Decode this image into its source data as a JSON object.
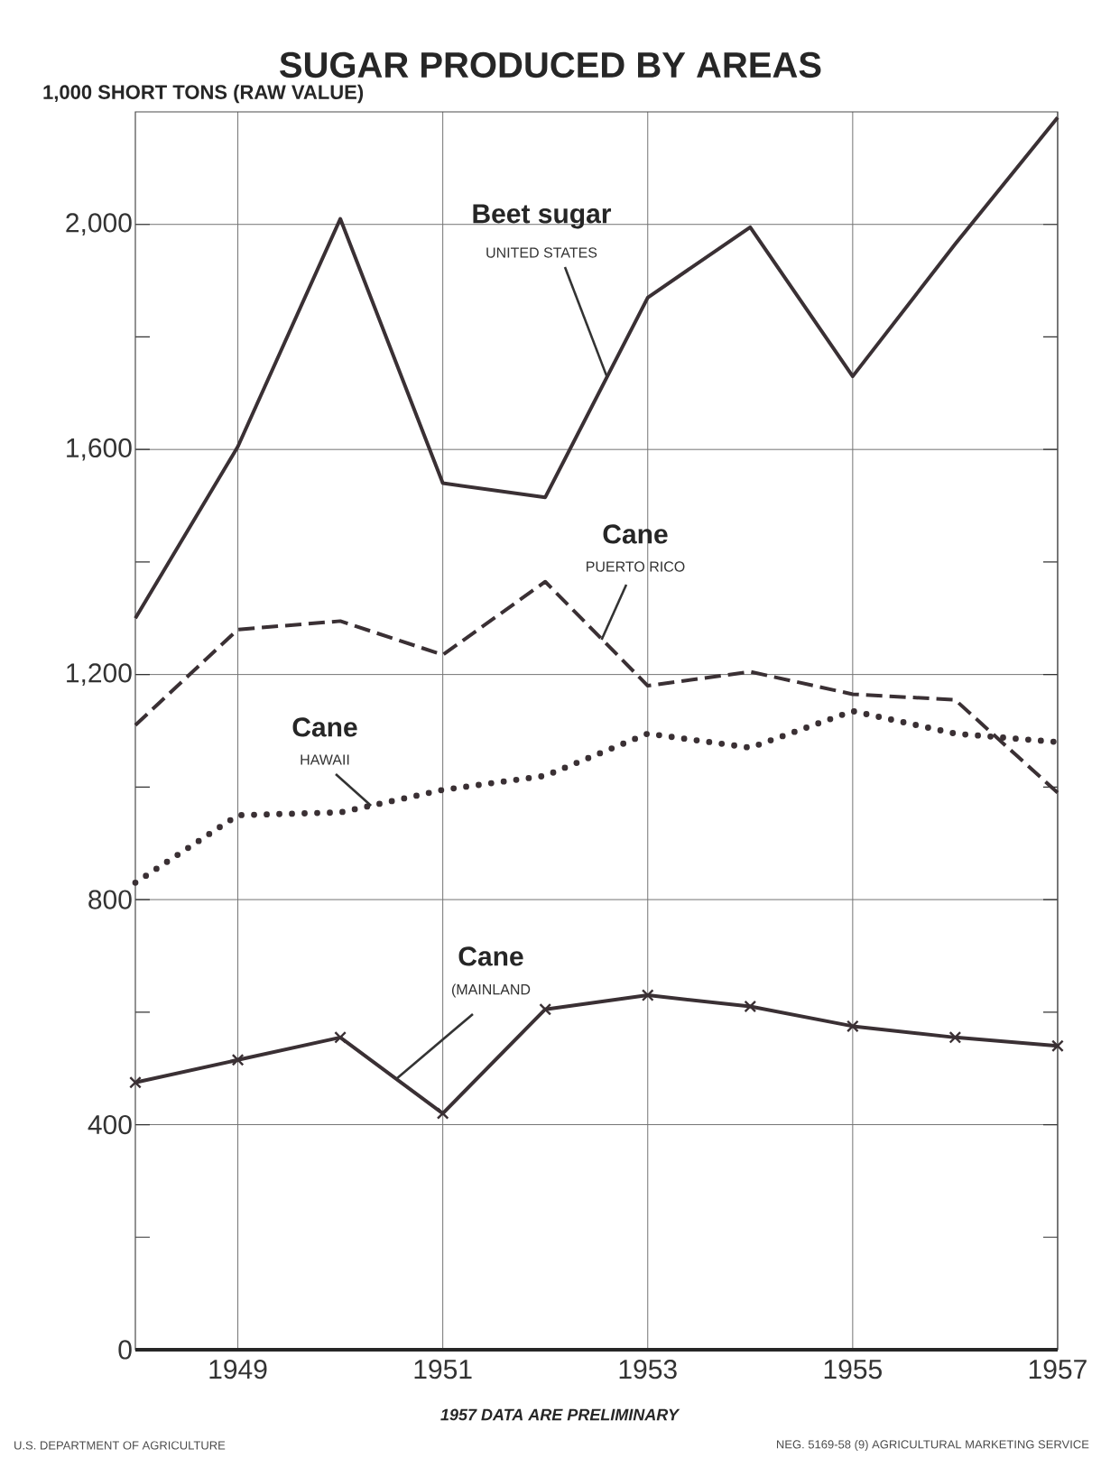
{
  "chart_data": {
    "type": "line",
    "title": "SUGAR PRODUCED BY AREAS",
    "ylabel": "1,000 SHORT TONS (RAW VALUE)",
    "x": [
      1948,
      1949,
      1950,
      1951,
      1952,
      1953,
      1954,
      1955,
      1956,
      1957
    ],
    "series": [
      {
        "name": "Beet sugar",
        "color": "#3a3034",
        "line_style": "solid",
        "values": [
          1300,
          1605,
          2010,
          1540,
          1515,
          1870,
          1995,
          1730,
          1965,
          2190
        ]
      },
      {
        "name": "Cane",
        "color": "#3a3034",
        "line_style": "dashed",
        "values": [
          1110,
          1280,
          1295,
          1235,
          1365,
          1180,
          1205,
          1165,
          1155,
          990
        ]
      },
      {
        "name": "Cane",
        "color": "#3a3034",
        "line_style": "dotted",
        "values": [
          830,
          950,
          955,
          995,
          1020,
          1095,
          1070,
          1135,
          1095,
          1080
        ]
      },
      {
        "name": "Cane",
        "color": "#3a3034",
        "line_style": "solid",
        "marker": "cross",
        "values": [
          475,
          515,
          555,
          420,
          605,
          630,
          610,
          575,
          555,
          540
        ]
      }
    ],
    "xlim": [
      1948,
      1957
    ],
    "ylim": [
      0,
      2200
    ],
    "xticks": [
      1949,
      1951,
      1953,
      1955,
      1957
    ],
    "yticks": [
      0,
      {
        "value": 200,
        "label": null
      },
      400,
      {
        "value": 600,
        "label": null
      },
      800,
      {
        "value": 1000,
        "label": null
      },
      {
        "value": 1200,
        "label": "1,200"
      },
      {
        "value": 1400,
        "label": null
      },
      {
        "value": 1600,
        "label": "1,600"
      },
      {
        "value": 1800,
        "label": null
      },
      {
        "value": 2000,
        "label": "2,000"
      }
    ],
    "grid": true,
    "annotations": [
      {
        "text": "UNITED STATES",
        "x": 1952.6,
        "y": 1730
      },
      {
        "text": "PUERTO RICO",
        "x": 1952.55,
        "y": 1262
      },
      {
        "text": "HAWAII",
        "x": 1950.3,
        "y": 967
      },
      {
        "text": "(MAINLAND",
        "x": 1950.55,
        "y": 482
      },
      "1957 DATA ARE PRELIMINARY",
      "U.S. DEPARTMENT OF AGRICULTURE",
      "NEG. 5169-58 (9)  AGRICULTURAL MARKETING SERVICE"
    ]
  }
}
